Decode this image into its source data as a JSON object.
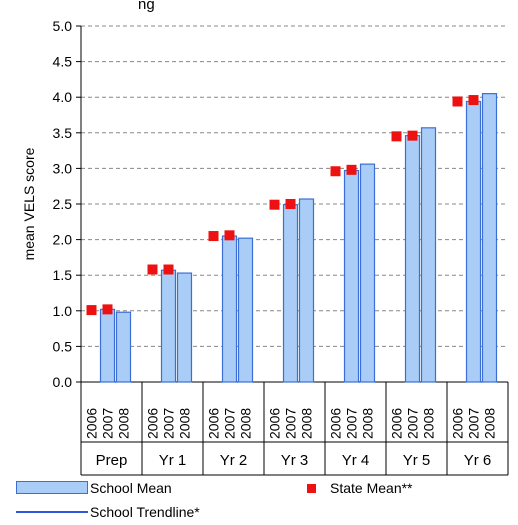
{
  "title_fragment": "ng",
  "colors": {
    "bar_fill": "#a9cdf6",
    "bar_stroke": "#3b6fd6",
    "state_marker": "#ee1111",
    "trendline": "#2f58d9",
    "grid": "#888888"
  },
  "chart_data": {
    "type": "bar",
    "ylabel": "mean VELS score",
    "ylim": [
      0,
      5
    ],
    "yticks": [
      "0.0",
      "0.5",
      "1.0",
      "1.5",
      "2.0",
      "2.5",
      "3.0",
      "3.5",
      "4.0",
      "4.5",
      "5.0"
    ],
    "grid": "horizontal dashed",
    "legend_position": "bottom",
    "groups": [
      "Prep",
      "Yr 1",
      "Yr 2",
      "Yr 3",
      "Yr 4",
      "Yr 5",
      "Yr 6"
    ],
    "years": [
      "2006",
      "2007",
      "2008"
    ],
    "series": [
      {
        "name": "School Mean",
        "kind": "bar",
        "values": [
          [
            null,
            1.02,
            0.98
          ],
          [
            null,
            1.57,
            1.53
          ],
          [
            null,
            2.05,
            2.02
          ],
          [
            null,
            2.49,
            2.57
          ],
          [
            null,
            2.97,
            3.06
          ],
          [
            null,
            3.46,
            3.57
          ],
          [
            null,
            3.94,
            4.05
          ]
        ]
      },
      {
        "name": "State Mean**",
        "kind": "marker",
        "values": [
          [
            1.01,
            1.02,
            null
          ],
          [
            1.58,
            1.58,
            null
          ],
          [
            2.05,
            2.06,
            null
          ],
          [
            2.49,
            2.5,
            null
          ],
          [
            2.96,
            2.98,
            null
          ],
          [
            3.45,
            3.46,
            null
          ],
          [
            3.94,
            3.96,
            null
          ]
        ]
      },
      {
        "name": "School Trendline*",
        "kind": "line",
        "values": []
      }
    ]
  },
  "legend": {
    "school_mean": "School Mean",
    "state_mean": "State Mean**",
    "trendline": "School Trendline*"
  }
}
